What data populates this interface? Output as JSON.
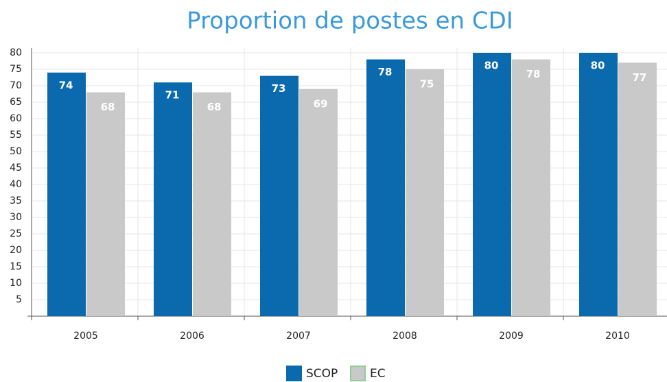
{
  "chart_data": {
    "type": "bar",
    "title": "Proportion de postes en CDI",
    "categories": [
      "2005",
      "2006",
      "2007",
      "2008",
      "2009",
      "2010"
    ],
    "series": [
      {
        "name": "SCOP",
        "color": "#0a6aad",
        "values": [
          74,
          71,
          73,
          78,
          80,
          80
        ]
      },
      {
        "name": "EC",
        "color": "#c8c9c8",
        "values": [
          68,
          68,
          69,
          75,
          78,
          77
        ]
      }
    ],
    "ylim": [
      0,
      80
    ],
    "yticks": [
      5,
      10,
      15,
      20,
      25,
      30,
      35,
      40,
      45,
      50,
      55,
      60,
      65,
      70,
      75,
      80
    ],
    "grid": true
  }
}
